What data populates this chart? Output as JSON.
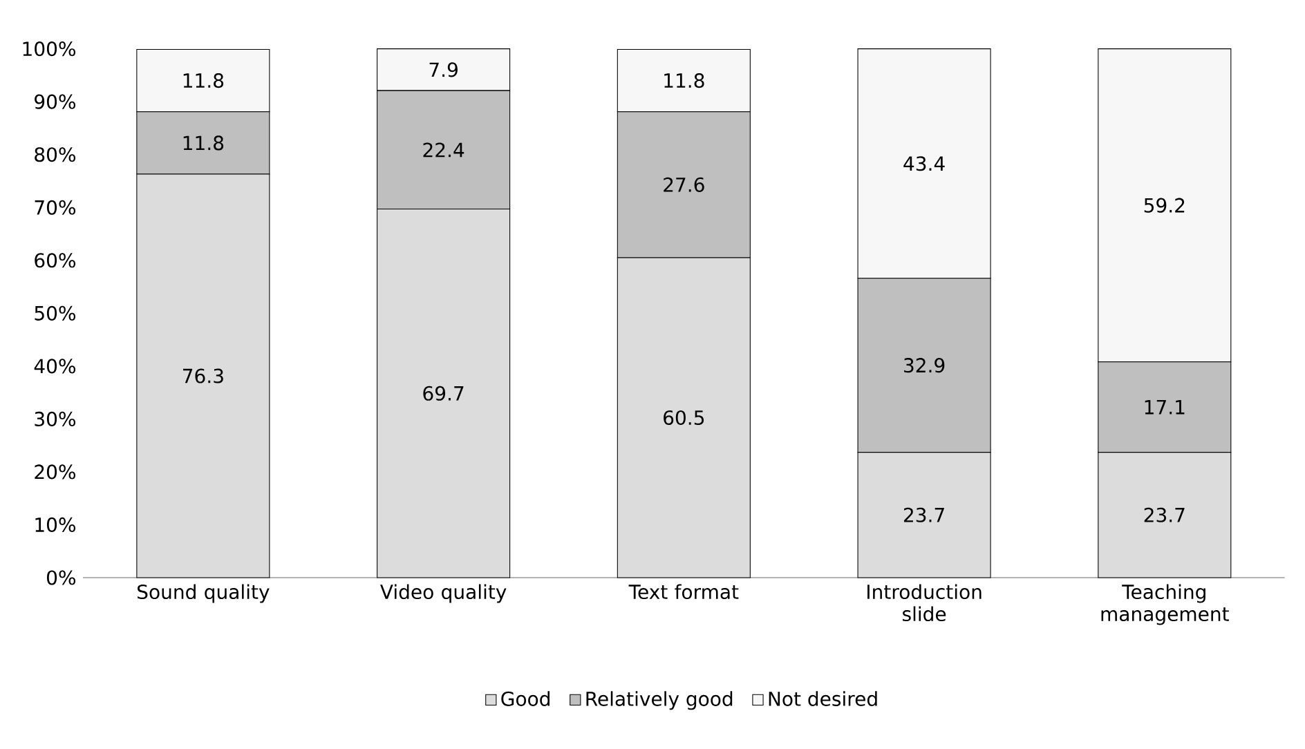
{
  "chart_data": {
    "type": "bar",
    "stacked": true,
    "categories": [
      "Sound quality",
      "Video quality",
      "Text format",
      "Introduction slide",
      "Teaching management"
    ],
    "series": [
      {
        "name": "Good",
        "color": "#dcdcdc",
        "values": [
          76.3,
          69.7,
          60.5,
          23.7,
          23.7
        ]
      },
      {
        "name": "Relatively good",
        "color": "#bfbfbf",
        "values": [
          11.8,
          22.4,
          27.6,
          32.9,
          17.1
        ]
      },
      {
        "name": "Not desired",
        "color": "#f7f7f7",
        "values": [
          11.8,
          7.9,
          11.8,
          43.4,
          59.2
        ]
      }
    ],
    "ylim": [
      0,
      100
    ],
    "yticks": [
      {
        "value": 0,
        "label": "0%"
      },
      {
        "value": 10,
        "label": "10%"
      },
      {
        "value": 20,
        "label": "20%"
      },
      {
        "value": 30,
        "label": "30%"
      },
      {
        "value": 40,
        "label": "40%"
      },
      {
        "value": 50,
        "label": "50%"
      },
      {
        "value": 60,
        "label": "60%"
      },
      {
        "value": 70,
        "label": "70%"
      },
      {
        "value": 80,
        "label": "80%"
      },
      {
        "value": 90,
        "label": "90%"
      },
      {
        "value": 100,
        "label": "100%"
      }
    ],
    "data_labels": true,
    "legend": "bottom"
  }
}
